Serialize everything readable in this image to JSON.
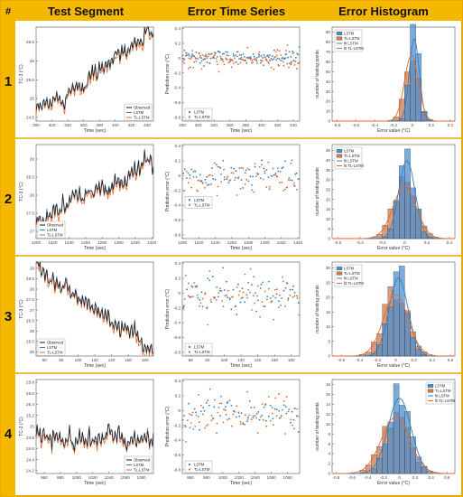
{
  "header": {
    "num_label": "#",
    "col1_title": "Test Segment",
    "col2_title": "Error Time Series",
    "col3_title": "Error Histogram"
  },
  "colors": {
    "header_bg": "#F5B800",
    "border": "#E8A800",
    "observed": "#1a1a1a",
    "lstm": "#2F7FC1",
    "tl_lstm": "#E2692B",
    "lstm_bar": "#4C8FD0",
    "tl_bar": "#CD7A4E"
  },
  "rows": [
    {
      "num": "1",
      "segment": {
        "ylabel": "TC-3 (°C)",
        "xlabel": "Time (sec)",
        "xticks": [
          "300",
          "320",
          "340",
          "360",
          "380",
          "400",
          "420",
          "440"
        ],
        "yticks": [
          "24.5",
          "25",
          "25.5",
          "26",
          "26.5"
        ],
        "legend": [
          "Observed",
          "LSTM",
          "TL-LSTM"
        ],
        "legend_pos": "bottom-right"
      },
      "errors": {
        "ylabel": "Prediction error (°C)",
        "xlabel": "Time (sec)",
        "xticks": [
          "300",
          "320",
          "340",
          "360",
          "380",
          "400",
          "420",
          "440"
        ],
        "yticks": [
          "-0.8",
          "-0.6",
          "-0.4",
          "-0.2",
          "0",
          "0.2",
          "0.4"
        ],
        "legend": [
          "LSTM",
          "TL-LSTM"
        ],
        "legend_pos": "bottom-left"
      },
      "hist": {
        "ylabel": "number of testing points",
        "xlabel": "Error value (°C)",
        "xticks": [
          "-0.8",
          "-0.6",
          "-0.4",
          "-0.2",
          "0",
          "0.2",
          "0.4"
        ],
        "yticks": [
          "0",
          "10",
          "20",
          "30",
          "40",
          "50",
          "60",
          "70",
          "80",
          "90"
        ],
        "legend": [
          "LSTM",
          "TL-LSTM",
          "fit LSTM",
          "fit TL-LSTM"
        ],
        "legend_pos": "top-left"
      }
    },
    {
      "num": "2",
      "segment": {
        "ylabel": "TC-3 (°C)",
        "xlabel": "Time (sec)",
        "xticks": [
          "1200",
          "1220",
          "1240",
          "1260",
          "1280",
          "1300",
          "1320",
          "1340"
        ],
        "yticks": [
          "27",
          "27.5",
          "28",
          "28.5",
          "29"
        ],
        "legend": [
          "Observed",
          "LSTM",
          "TL-LSTM"
        ],
        "legend_pos": "bottom-left"
      },
      "errors": {
        "ylabel": "Prediction error (°C)",
        "xlabel": "Time (sec)",
        "xticks": [
          "1200",
          "1220",
          "1240",
          "1260",
          "1280",
          "1300",
          "1320",
          "1340"
        ],
        "yticks": [
          "-0.8",
          "-0.6",
          "-0.4",
          "-0.2",
          "0",
          "0.2",
          "0.4"
        ],
        "legend": [
          "LSTM",
          "TL-LSTM"
        ],
        "legend_pos": "top-left"
      },
      "hist": {
        "ylabel": "number of testing points",
        "xlabel": "Error value (°C)",
        "xticks": [
          "-0.6",
          "-0.4",
          "-0.2",
          "0",
          "0.2",
          "0.4"
        ],
        "yticks": [
          "0",
          "5",
          "10",
          "15",
          "20",
          "25",
          "30",
          "35",
          "40",
          "45"
        ],
        "legend": [
          "LSTM",
          "TL-LSTM",
          "fit LSTM",
          "fit TL-LSTM"
        ],
        "legend_pos": "top-left"
      }
    },
    {
      "num": "3",
      "segment": {
        "ylabel": "TC-3 (°C)",
        "xlabel": "Time (sec)",
        "xticks": [
          "60",
          "80",
          "100",
          "120",
          "140",
          "160",
          "180"
        ],
        "yticks": [
          "25",
          "25.5",
          "26",
          "26.5",
          "27",
          "27.5",
          "28",
          "28.5",
          "29"
        ],
        "legend": [
          "Observed",
          "LSTM",
          "TL-LSTM"
        ],
        "legend_pos": "bottom-left"
      },
      "errors": {
        "ylabel": "Prediction error (°C)",
        "xlabel": "Time (sec)",
        "xticks": [
          "60",
          "80",
          "100",
          "120",
          "140",
          "160",
          "180"
        ],
        "yticks": [
          "-0.8",
          "-0.6",
          "-0.4",
          "-0.2",
          "0",
          "0.2",
          "0.4"
        ],
        "legend": [
          "LSTM",
          "TL-LSTM"
        ],
        "legend_pos": "bottom-left"
      },
      "hist": {
        "ylabel": "number of testing points",
        "xlabel": "Error value (°C)",
        "xticks": [
          "-0.6",
          "-0.4",
          "-0.2",
          "0",
          "0.2",
          "0.4",
          "0.6"
        ],
        "yticks": [
          "0",
          "5",
          "10",
          "15",
          "20",
          "25",
          "30"
        ],
        "legend": [
          "LSTM",
          "TL-LSTM",
          "fit LSTM",
          "fit TL-LSTM"
        ],
        "legend_pos": "top-left"
      }
    },
    {
      "num": "4",
      "segment": {
        "ylabel": "TC-3 (°C)",
        "xlabel": "Time (sec)",
        "xticks": [
          "960",
          "980",
          "1000",
          "1020",
          "1040",
          "1060",
          "1080"
        ],
        "yticks": [
          "24.2",
          "24.4",
          "24.6",
          "24.8",
          "25",
          "25.2",
          "25.4",
          "25.6",
          "25.8"
        ],
        "legend": [
          "Observed",
          "LSTM",
          "TL-LSTM"
        ],
        "legend_pos": "bottom-right"
      },
      "errors": {
        "ylabel": "Prediction error (°C)",
        "xlabel": "Time (sec)",
        "xticks": [
          "960",
          "980",
          "1000",
          "1020",
          "1040",
          "1060",
          "1080"
        ],
        "yticks": [
          "-0.8",
          "-0.6",
          "-0.4",
          "-0.2",
          "0",
          "0.2",
          "0.4"
        ],
        "legend": [
          "LSTM",
          "TL-LSTM"
        ],
        "legend_pos": "bottom-left"
      },
      "hist": {
        "ylabel": "number of testing points",
        "xlabel": "Error value (°C)",
        "xticks": [
          "-0.8",
          "-0.6",
          "-0.4",
          "-0.2",
          "0",
          "0.2",
          "0.4",
          "0.6"
        ],
        "yticks": [
          "0",
          "2",
          "4",
          "6",
          "8",
          "10",
          "12",
          "14",
          "16",
          "18"
        ],
        "legend": [
          "LSTM",
          "TL-LSTM",
          "fit LSTM",
          "fit TL-LSTM"
        ],
        "legend_pos": "top-right"
      }
    }
  ],
  "chart_data": [
    {
      "type": "line",
      "panel": "row1-segment",
      "xlim": [
        300,
        448
      ],
      "ylim": [
        24.4,
        26.9
      ],
      "series": [
        {
          "name": "Observed"
        },
        {
          "name": "LSTM"
        },
        {
          "name": "TL-LSTM"
        }
      ],
      "trend": [
        [
          300,
          24.6
        ],
        [
          448,
          26.8
        ]
      ]
    },
    {
      "type": "scatter",
      "panel": "row1-errors",
      "xlim": [
        300,
        448
      ],
      "ylim": [
        -0.85,
        0.42
      ],
      "series": [
        {
          "name": "LSTM",
          "center": 0.02,
          "spread": 0.05
        },
        {
          "name": "TL-LSTM",
          "center": -0.02,
          "spread": 0.07
        }
      ]
    },
    {
      "type": "bar",
      "panel": "row1-hist",
      "xlim": [
        -0.85,
        0.45
      ],
      "ylim": [
        0,
        95
      ],
      "series": [
        {
          "name": "LSTM",
          "mean": 0.02,
          "sd": 0.05,
          "peak": 88
        },
        {
          "name": "TL-LSTM",
          "mean": -0.01,
          "sd": 0.07,
          "peak": 70
        }
      ]
    },
    {
      "type": "line",
      "panel": "row2-segment",
      "xlim": [
        1200,
        1342
      ],
      "ylim": [
        26.8,
        29.4
      ],
      "series": [
        {
          "name": "Observed"
        },
        {
          "name": "LSTM"
        },
        {
          "name": "TL-LSTM"
        }
      ],
      "trend": [
        [
          1200,
          27.3
        ],
        [
          1342,
          28.9
        ]
      ]
    },
    {
      "type": "scatter",
      "panel": "row2-errors",
      "xlim": [
        1200,
        1342
      ],
      "ylim": [
        -0.85,
        0.42
      ],
      "series": [
        {
          "name": "LSTM",
          "center": 0.0,
          "spread": 0.1
        },
        {
          "name": "TL-LSTM",
          "center": -0.01,
          "spread": 0.12
        }
      ]
    },
    {
      "type": "bar",
      "panel": "row2-hist",
      "xlim": [
        -0.65,
        0.45
      ],
      "ylim": [
        0,
        48
      ],
      "series": [
        {
          "name": "LSTM",
          "mean": 0.02,
          "sd": 0.07,
          "peak": 42
        },
        {
          "name": "TL-LSTM",
          "mean": 0.0,
          "sd": 0.1,
          "peak": 28
        }
      ]
    },
    {
      "type": "line",
      "panel": "row3-segment",
      "xlim": [
        50,
        190
      ],
      "ylim": [
        24.8,
        29.3
      ],
      "series": [
        {
          "name": "Observed"
        },
        {
          "name": "LSTM"
        },
        {
          "name": "TL-LSTM"
        }
      ],
      "trend": [
        [
          50,
          29.0
        ],
        [
          190,
          25.0
        ]
      ]
    },
    {
      "type": "scatter",
      "panel": "row3-errors",
      "xlim": [
        50,
        190
      ],
      "ylim": [
        -0.85,
        0.42
      ],
      "series": [
        {
          "name": "LSTM",
          "center": 0.0,
          "spread": 0.12
        },
        {
          "name": "TL-LSTM",
          "center": -0.03,
          "spread": 0.14
        }
      ]
    },
    {
      "type": "bar",
      "panel": "row3-hist",
      "xlim": [
        -0.7,
        0.65
      ],
      "ylim": [
        0,
        32
      ],
      "series": [
        {
          "name": "LSTM",
          "mean": 0.03,
          "sd": 0.1,
          "peak": 28
        },
        {
          "name": "TL-LSTM",
          "mean": 0.0,
          "sd": 0.13,
          "peak": 22
        }
      ]
    },
    {
      "type": "line",
      "panel": "row4-segment",
      "xlim": [
        950,
        1095
      ],
      "ylim": [
        24.15,
        25.85
      ],
      "series": [
        {
          "name": "Observed"
        },
        {
          "name": "LSTM"
        },
        {
          "name": "TL-LSTM"
        }
      ],
      "trend": [
        [
          950,
          24.8
        ],
        [
          1095,
          24.8
        ]
      ]
    },
    {
      "type": "scatter",
      "panel": "row4-errors",
      "xlim": [
        950,
        1095
      ],
      "ylim": [
        -0.85,
        0.42
      ],
      "series": [
        {
          "name": "LSTM",
          "center": -0.03,
          "spread": 0.12
        },
        {
          "name": "TL-LSTM",
          "center": -0.05,
          "spread": 0.14
        }
      ]
    },
    {
      "type": "bar",
      "panel": "row4-hist",
      "xlim": [
        -0.85,
        0.7
      ],
      "ylim": [
        0,
        19
      ],
      "series": [
        {
          "name": "LSTM",
          "mean": 0.0,
          "sd": 0.14,
          "peak": 16
        },
        {
          "name": "TL-LSTM",
          "mean": -0.05,
          "sd": 0.17,
          "peak": 12
        }
      ]
    }
  ]
}
